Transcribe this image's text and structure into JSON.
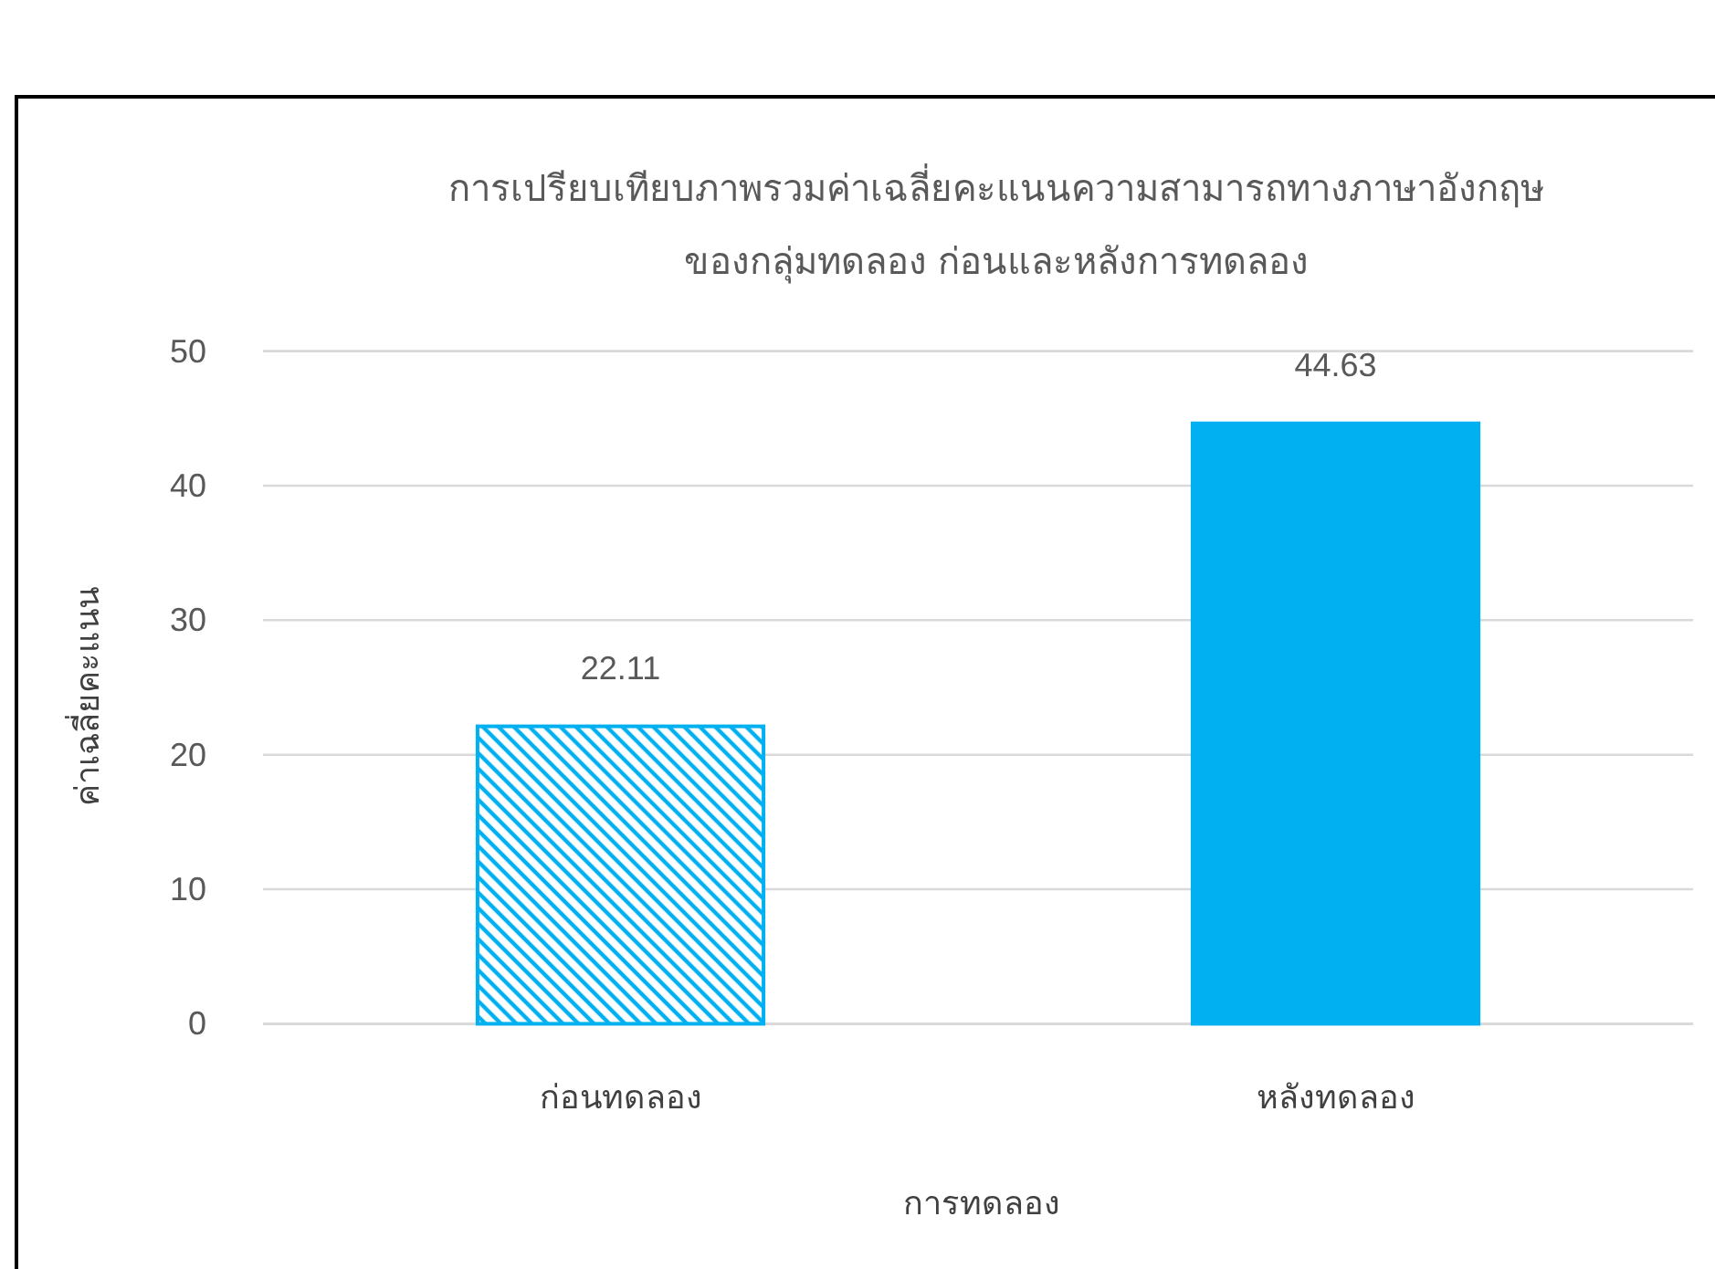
{
  "chart_data": {
    "type": "bar",
    "title": "การเปรียบเทียบภาพรวมค่าเฉลี่ยคะแนนความสามารถทางภาษาอังกฤษ\nของกลุ่มทดลอง ก่อนและหลังการทดลอง",
    "xlabel": "การทดลอง",
    "ylabel": "ค่าเฉลี่ยคะแนน",
    "categories": [
      "ก่อนทดลอง",
      "หลังทดลอง"
    ],
    "values": [
      22.11,
      44.63
    ],
    "colors": [
      "#00b0f0",
      "#00b0f0"
    ],
    "ylim": [
      0,
      50
    ],
    "yticks": [
      0,
      10,
      20,
      30,
      40,
      50
    ],
    "grid": "y",
    "data_labels": true
  }
}
